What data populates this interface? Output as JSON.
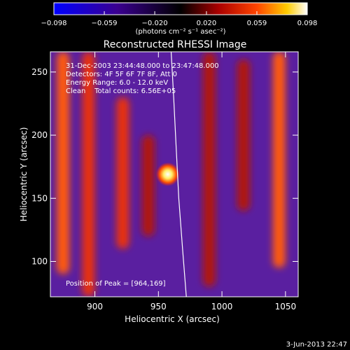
{
  "colorbar": {
    "ticks": [
      "−0.098",
      "−0.059",
      "−0.020",
      "0.020",
      "0.059",
      "0.098"
    ],
    "range": [
      -0.098,
      0.098
    ],
    "unit_label": "(photons cm⁻² s⁻¹ asec⁻²)"
  },
  "chart_data": {
    "type": "heatmap",
    "title": "Reconstructed RHESSI Image",
    "xlabel": "Heliocentric X (arcsec)",
    "ylabel": "Heliocentric Y (arcsec)",
    "xlim": [
      865,
      1060
    ],
    "ylim": [
      72,
      266
    ],
    "xticks": [
      900,
      950,
      1000,
      1050
    ],
    "yticks": [
      100,
      150,
      200,
      250
    ],
    "annotations": [
      "31-Dec-2003 23:44:48.000 to 23:47:48.000",
      "Detectors: 4F 5F 6F 7F 8F, Att 0",
      "Energy Range: 6.0 - 12.0 keV",
      "Clean    Total counts: 6.56E+05"
    ],
    "peak_label": "Position of Peak = [964,169]",
    "peak": {
      "x": 964,
      "y": 169
    },
    "bright_streaks": [
      {
        "x": 875,
        "ymin": 90,
        "ymax": 266,
        "level": 0.75
      },
      {
        "x": 895,
        "ymin": 72,
        "ymax": 266,
        "level": 0.6
      },
      {
        "x": 922,
        "ymin": 110,
        "ymax": 230,
        "level": 0.55
      },
      {
        "x": 942,
        "ymin": 120,
        "ymax": 200,
        "level": 0.5
      },
      {
        "x": 990,
        "ymin": 80,
        "ymax": 266,
        "level": 0.45
      },
      {
        "x": 1017,
        "ymin": 140,
        "ymax": 260,
        "level": 0.4
      },
      {
        "x": 1045,
        "ymin": 95,
        "ymax": 266,
        "level": 0.8
      }
    ],
    "limb_curve": [
      [
        960,
        266
      ],
      [
        962,
        230
      ],
      [
        964,
        190
      ],
      [
        966,
        150
      ],
      [
        969,
        110
      ],
      [
        972,
        72
      ]
    ],
    "colors": {
      "low": "#0000ff",
      "zero": "#000000",
      "mid": "#ff3300",
      "high": "#ffffff",
      "background_field": "#5a1fa0"
    }
  },
  "footer": {
    "date": "3-Jun-2013 22:47"
  }
}
